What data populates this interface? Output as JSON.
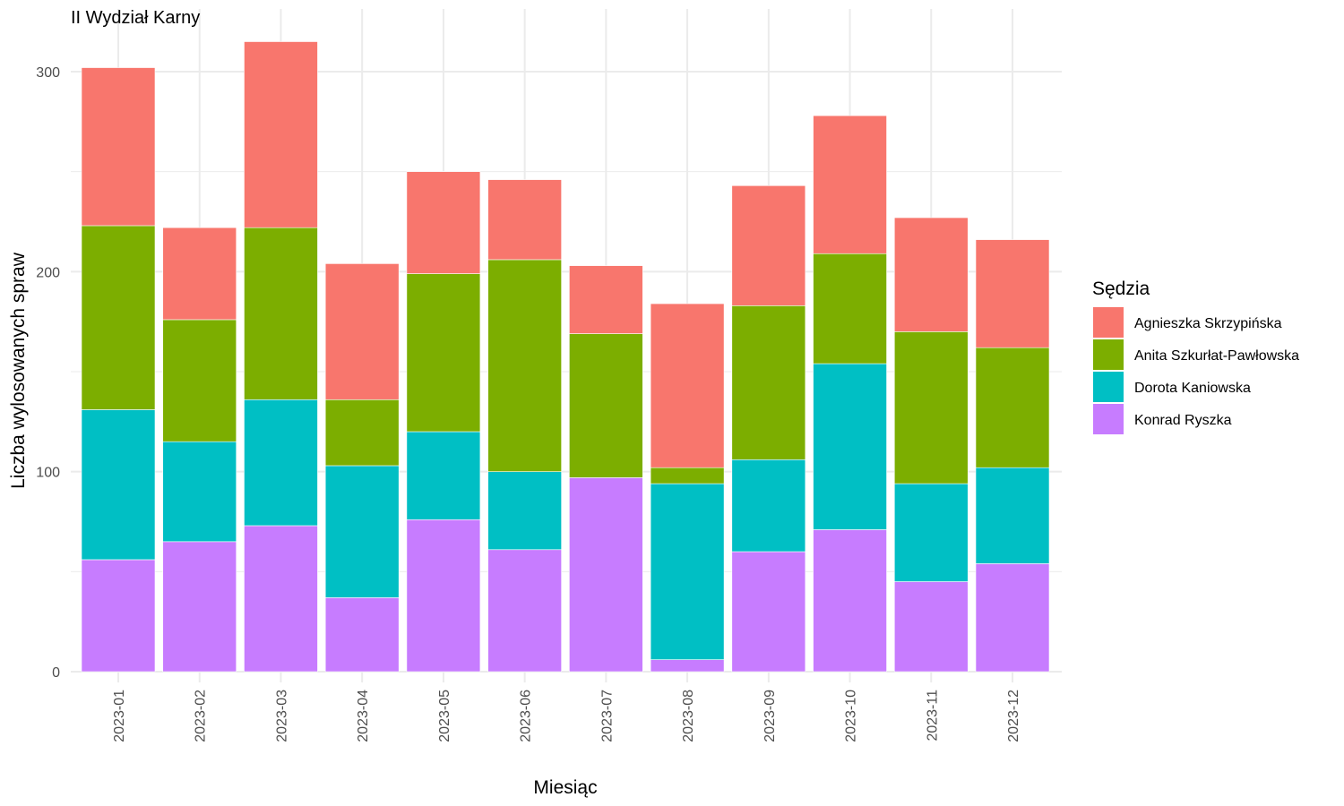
{
  "chart_data": {
    "type": "bar",
    "stacked": true,
    "title": "II Wydział Karny",
    "xlabel": "Miesiąc",
    "ylabel": "Liczba wylosowanych spraw",
    "ylim": [
      0,
      320
    ],
    "yticks": [
      0,
      100,
      200,
      300
    ],
    "grid": true,
    "legend_position": "right",
    "legend_title": "Sędzia",
    "categories": [
      "2023-01",
      "2023-02",
      "2023-03",
      "2023-04",
      "2023-05",
      "2023-06",
      "2023-07",
      "2023-08",
      "2023-09",
      "2023-10",
      "2023-11",
      "2023-12"
    ],
    "series": [
      {
        "name": "Konrad Ryszka",
        "color": "#C77CFF",
        "values": [
          56,
          65,
          73,
          37,
          76,
          61,
          97,
          6,
          60,
          71,
          45,
          54
        ]
      },
      {
        "name": "Dorota Kaniowska",
        "color": "#00BFC4",
        "values": [
          75,
          50,
          63,
          66,
          44,
          39,
          0,
          88,
          46,
          83,
          49,
          48
        ]
      },
      {
        "name": "Anita Szkurłat-Pawłowska",
        "color": "#7CAE00",
        "values": [
          92,
          61,
          86,
          33,
          79,
          106,
          72,
          8,
          77,
          55,
          76,
          60
        ]
      },
      {
        "name": "Agnieszka Skrzypińska",
        "color": "#F8766D",
        "values": [
          79,
          46,
          93,
          68,
          51,
          40,
          34,
          82,
          60,
          69,
          57,
          54
        ]
      }
    ],
    "legend_order": [
      "Agnieszka Skrzypińska",
      "Anita Szkurłat-Pawłowska",
      "Dorota Kaniowska",
      "Konrad Ryszka"
    ]
  }
}
